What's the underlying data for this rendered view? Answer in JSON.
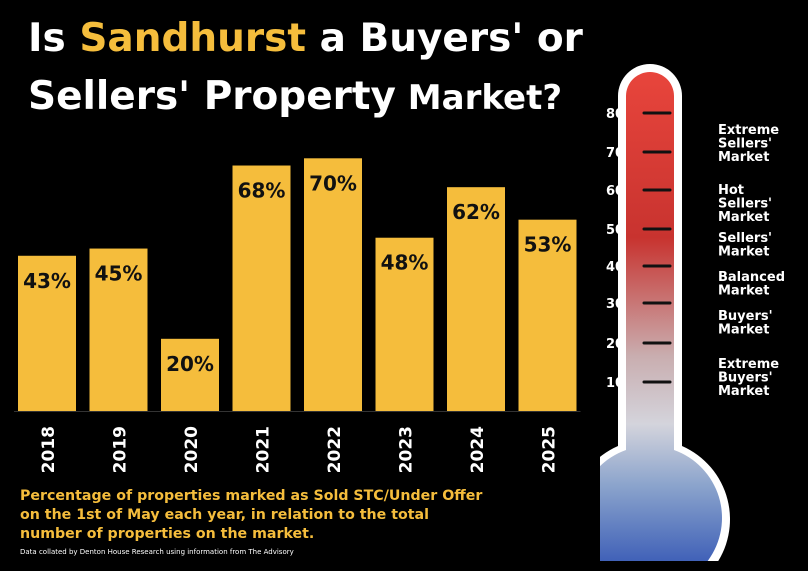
{
  "title": {
    "prefix": "Is ",
    "highlight": "Sandhurst",
    "middle": " a Buyers' or",
    "line2_main": "Sellers' Property",
    "line2_small": " Market?"
  },
  "colors": {
    "bar": "#f5bd3c",
    "background": "#000000",
    "accent": "#f5bd3c",
    "thermo_top": "#e8453c",
    "thermo_bottom": "#2448b0"
  },
  "chart_data": {
    "type": "bar",
    "categories": [
      "2018",
      "2019",
      "2020",
      "2021",
      "2022",
      "2023",
      "2024",
      "2025"
    ],
    "values": [
      43,
      45,
      20,
      68,
      70,
      48,
      62,
      53
    ],
    "data_labels": [
      "43%",
      "45%",
      "20%",
      "68%",
      "70%",
      "48%",
      "62%",
      "53%"
    ],
    "ylim": [
      0,
      100
    ],
    "grid": false,
    "legend": false
  },
  "footer": {
    "text": "Percentage of properties marked as Sold STC/Under Offer on the 1st of May each year, in relation to the total number of properties on the market.",
    "source": "Data collated by Denton House Research using information from The Advisory"
  },
  "thermometer": {
    "scale": [
      "80",
      "70",
      "60",
      "50",
      "40",
      "30",
      "20",
      "10"
    ],
    "zones": [
      [
        "Extreme",
        "Sellers'",
        "Market"
      ],
      [
        "Hot",
        "Sellers'",
        "Market"
      ],
      [
        "Sellers'",
        "Market"
      ],
      [
        "Balanced",
        "Market"
      ],
      [
        "Buyers'",
        "Market"
      ],
      [
        "Extreme",
        "Buyers'",
        "Market"
      ]
    ]
  }
}
